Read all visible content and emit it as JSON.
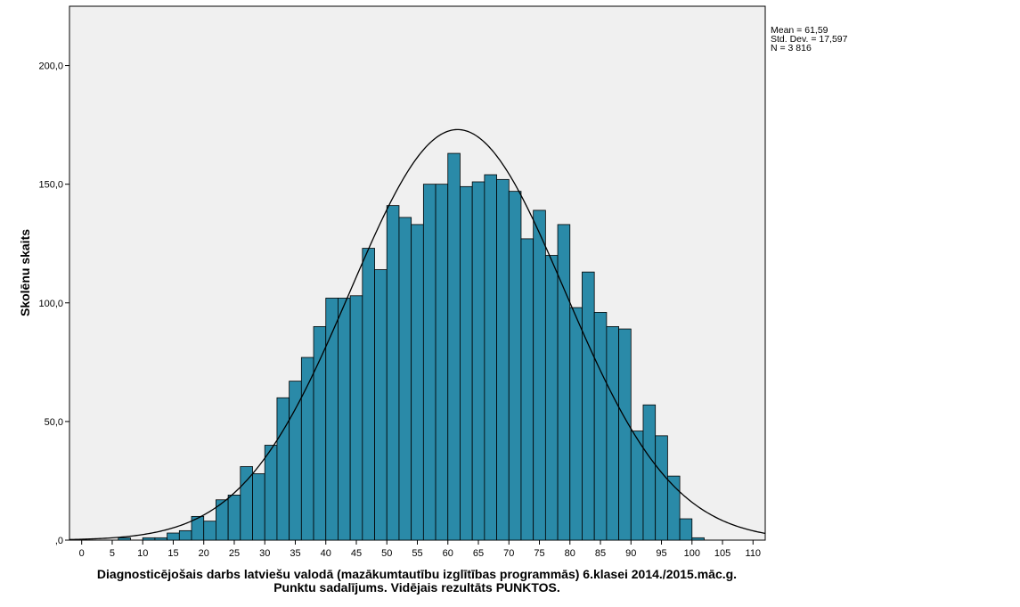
{
  "chart_data": {
    "type": "bar",
    "xlabel": [
      "Diagnosticējošais darbs latviešu valodā (mazākumtautību izglītības programmās) 6.klasei 2014./2015.māc.g.",
      "Punktu sadalījums. Vidējais rezultāts PUNKTOS."
    ],
    "ylabel": "Skolēnu skaits",
    "xlim": [
      -2,
      112
    ],
    "ylim": [
      0,
      225
    ],
    "x_ticks": [
      0,
      5,
      10,
      15,
      20,
      25,
      30,
      35,
      40,
      45,
      50,
      55,
      60,
      65,
      70,
      75,
      80,
      85,
      90,
      95,
      100,
      105,
      110
    ],
    "y_ticks": [
      {
        "value": 0,
        "label": ",0"
      },
      {
        "value": 50,
        "label": "50,0"
      },
      {
        "value": 100,
        "label": "100,0"
      },
      {
        "value": 150,
        "label": "150,0"
      },
      {
        "value": 200,
        "label": "200,0"
      }
    ],
    "bin_width": 2,
    "bins_start": [
      6,
      10,
      12,
      14,
      16,
      18,
      20,
      22,
      24,
      26,
      28,
      30,
      32,
      34,
      36,
      38,
      40,
      42,
      44,
      46,
      48,
      50,
      52,
      54,
      56,
      58,
      60,
      62,
      64,
      66,
      68,
      70,
      72,
      74,
      76,
      78,
      80,
      82,
      84,
      86,
      88,
      90,
      92,
      94,
      96,
      98,
      100
    ],
    "values": [
      1,
      1,
      1,
      3,
      4,
      10,
      8,
      17,
      19,
      31,
      28,
      40,
      60,
      67,
      77,
      90,
      102,
      102,
      103,
      123,
      114,
      141,
      136,
      133,
      150,
      150,
      163,
      149,
      151,
      154,
      152,
      147,
      127,
      139,
      120,
      133,
      98,
      113,
      96,
      90,
      89,
      46,
      57,
      44,
      27,
      9,
      1
    ],
    "normal_curve": {
      "mean": 61.59,
      "std_dev": 17.597,
      "n": 3816
    },
    "stats_text": [
      "Mean = 61,59",
      "Std. Dev. = 17,597",
      "N = 3 816"
    ],
    "bar_color": "#2a8aa8",
    "plot_background": "#f0f0f0",
    "grid": false
  }
}
